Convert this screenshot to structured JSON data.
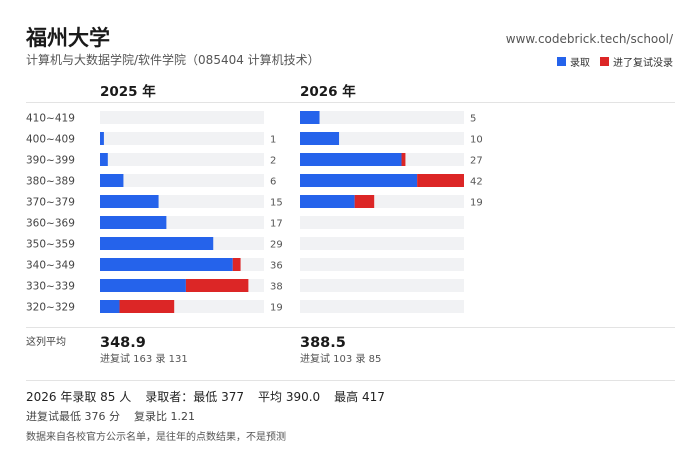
{
  "header": {
    "title": "福州大学",
    "subtitle": "计算机与大数据学院/软件学院（085404 计算机技术）",
    "site": "www.codebrick.tech/school/"
  },
  "legend": [
    {
      "label": "录取",
      "color": "#2563eb"
    },
    {
      "label": "进了复试没录",
      "color": "#dc2626"
    }
  ],
  "avg_label": "这列平均",
  "chart_data": {
    "type": "bar",
    "orientation": "horizontal",
    "stacked": true,
    "categories": [
      "410~419",
      "400~409",
      "390~399",
      "380~389",
      "370~379",
      "360~369",
      "350~359",
      "340~349",
      "330~339",
      "320~329"
    ],
    "xlim": [
      0,
      42
    ],
    "panels": [
      {
        "title": "2025 年",
        "series": [
          {
            "name": "录取",
            "values": [
              0,
              1,
              2,
              6,
              15,
              17,
              29,
              34,
              22,
              5
            ]
          },
          {
            "name": "进了复试没录",
            "values": [
              0,
              0,
              0,
              0,
              0,
              0,
              0,
              2,
              16,
              14
            ]
          }
        ],
        "totals": [
          "",
          "1",
          "2",
          "6",
          "15",
          "17",
          "29",
          "36",
          "38",
          "19"
        ],
        "avg": "348.9",
        "avg_sub": "进复试 163 录 131"
      },
      {
        "title": "2026 年",
        "series": [
          {
            "name": "录取",
            "values": [
              5,
              10,
              26,
              30,
              14,
              0,
              0,
              0,
              0,
              0
            ]
          },
          {
            "name": "进了复试没录",
            "values": [
              0,
              0,
              1,
              12,
              5,
              0,
              0,
              0,
              0,
              0
            ]
          }
        ],
        "totals": [
          "5",
          "10",
          "27",
          "42",
          "19",
          "",
          "",
          "",
          "",
          ""
        ],
        "avg": "388.5",
        "avg_sub": "进复试 103 录 85"
      }
    ]
  },
  "summary": {
    "line1": [
      "2026 年录取 85 人",
      "录取者：最低 377",
      "平均 390.0",
      "最高 417"
    ],
    "line2": [
      "进复试最低 376 分",
      "复录比 1.21"
    ],
    "note": "数据来自各校官方公示名单，是往年的点数结果，不是预测"
  }
}
